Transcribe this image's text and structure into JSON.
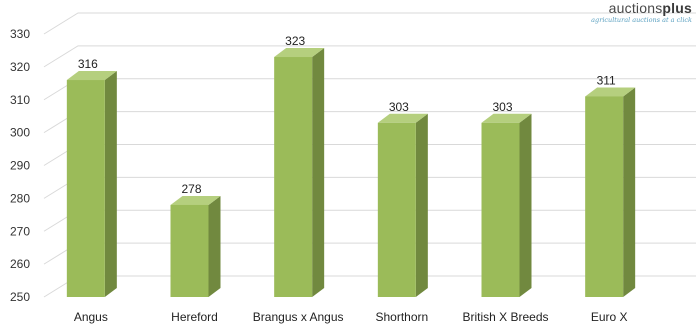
{
  "logo": {
    "name_light": "auctions",
    "name_bold": "plus",
    "tagline": "agricultural auctions at a click"
  },
  "chart_data": {
    "type": "bar",
    "title": "",
    "xlabel": "",
    "ylabel": "",
    "categories": [
      "Angus",
      "Hereford",
      "Brangus x Angus",
      "Shorthorn",
      "British X Breeds",
      "Euro X"
    ],
    "values": [
      316,
      278,
      323,
      303,
      303,
      311
    ],
    "data_labels": [
      "316",
      "278",
      "323",
      "303",
      "303",
      "311"
    ],
    "ylim": [
      250,
      330
    ],
    "yticks": [
      250,
      260,
      270,
      280,
      290,
      300,
      310,
      320,
      330
    ],
    "grid": true,
    "legend": "none",
    "bar_style": "3d",
    "colors": {
      "front": "#9bbb59",
      "side": "#71893f",
      "top": "#b5cf7e",
      "grid": "#d9d9d9"
    }
  }
}
